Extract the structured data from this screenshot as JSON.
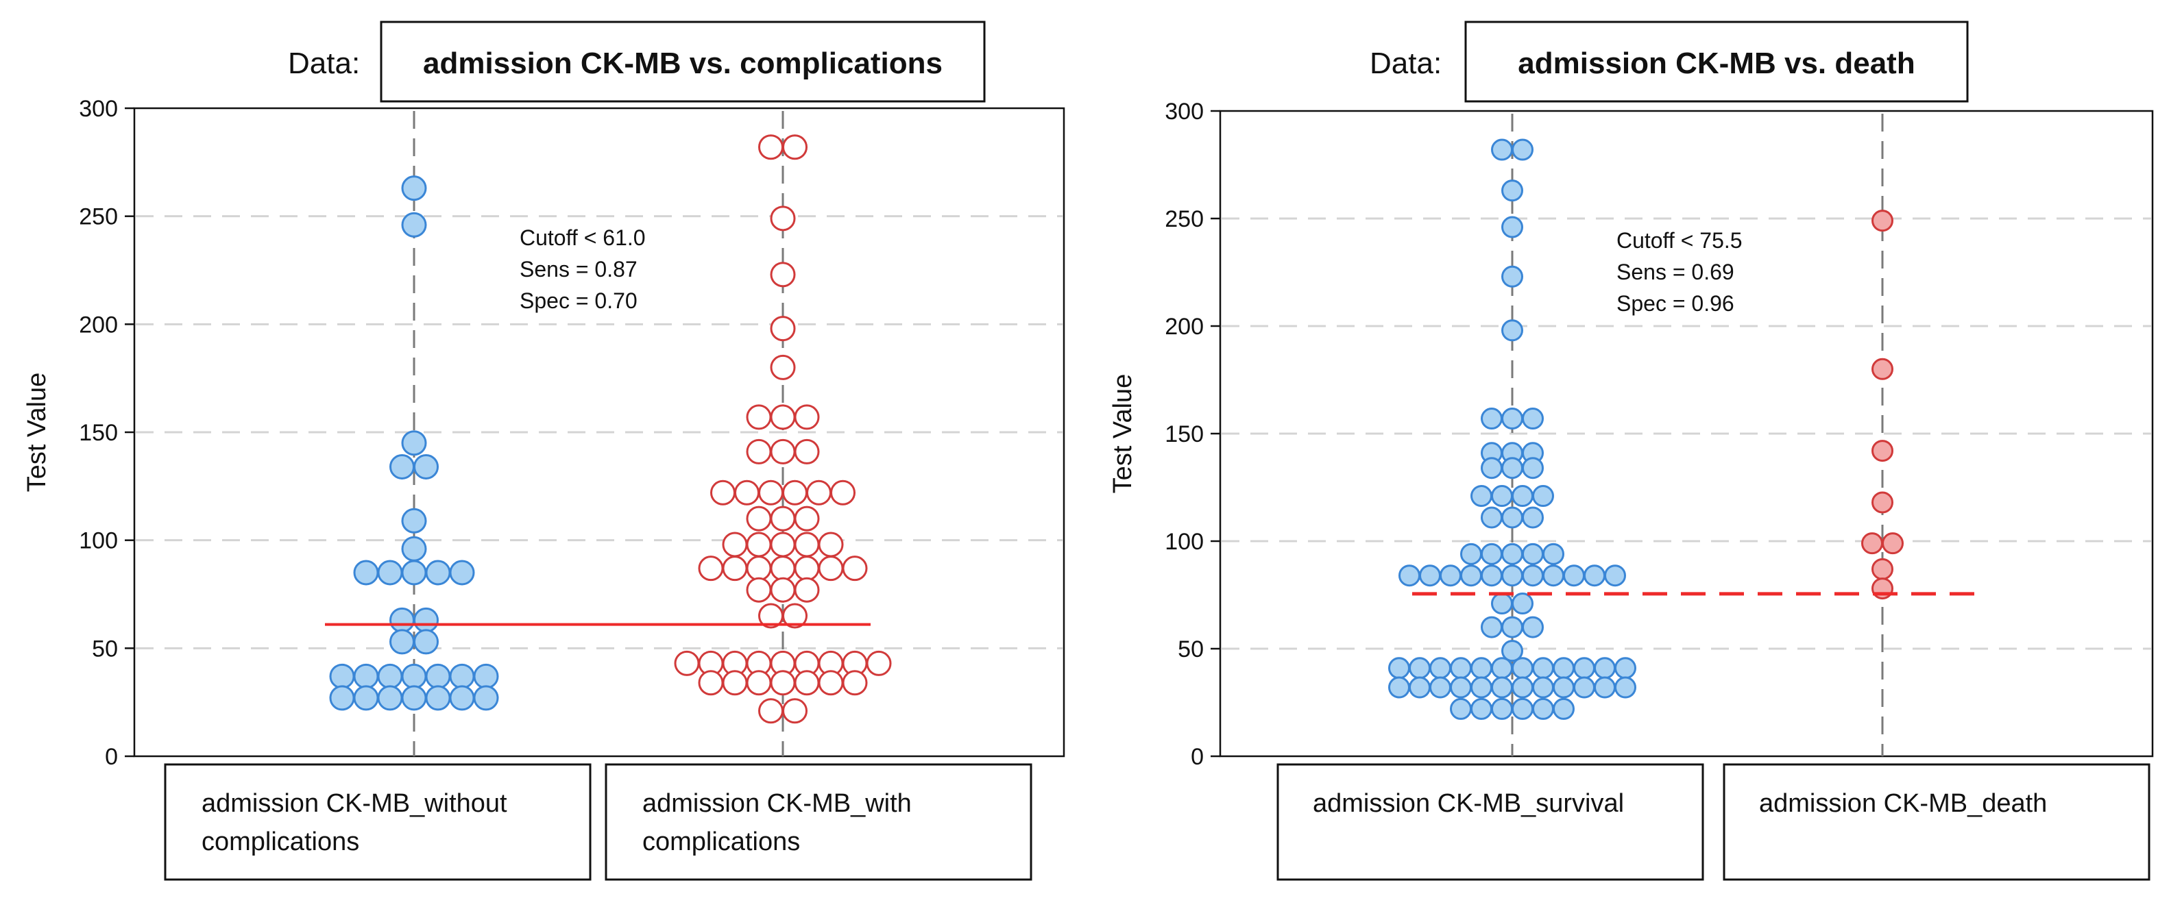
{
  "chart_data": [
    {
      "type": "scatter",
      "subtype": "dot-plot",
      "data_label": "Data:",
      "title": "admission CK-MB vs. complications",
      "ylabel": "Test Value",
      "ylim": [
        0,
        300
      ],
      "yticks": [
        "0",
        "50",
        "100",
        "150",
        "200",
        "250",
        "300"
      ],
      "grid": true,
      "cutoff_value": 61.0,
      "cutoff_style": "solid",
      "annotation": [
        "Cutoff < 61.0",
        "Sens = 0.87",
        "Spec = 0.70"
      ],
      "categories": [
        "admission CK-MB_without complications",
        "admission CK-MB_with complications"
      ],
      "category_lines": [
        [
          "admission CK-MB_without",
          "complications"
        ],
        [
          "admission CK-MB_with",
          "complications"
        ]
      ],
      "series": [
        {
          "name": "admission CK-MB_without complications",
          "color": "#3a86d6",
          "fill": "#a9d2f3",
          "hollow": false,
          "values": [
            263,
            246,
            145,
            134,
            134,
            109,
            96,
            85,
            85,
            85,
            85,
            85,
            63,
            63,
            53,
            53,
            37,
            37,
            37,
            37,
            37,
            37,
            37,
            27,
            27,
            27,
            27,
            27,
            27,
            27
          ]
        },
        {
          "name": "admission CK-MB_with complications",
          "color": "#d13a3a",
          "fill": "#ffffff",
          "hollow": true,
          "values": [
            282,
            282,
            249,
            223,
            198,
            180,
            157,
            157,
            157,
            141,
            141,
            141,
            122,
            122,
            122,
            122,
            122,
            122,
            110,
            110,
            110,
            98,
            98,
            98,
            98,
            98,
            87,
            87,
            87,
            87,
            87,
            87,
            87,
            77,
            77,
            77,
            65,
            65,
            43,
            43,
            43,
            43,
            43,
            43,
            43,
            43,
            43,
            34,
            34,
            34,
            34,
            34,
            34,
            34,
            21,
            21
          ]
        }
      ]
    },
    {
      "type": "scatter",
      "subtype": "dot-plot",
      "data_label": "Data:",
      "title": "admission CK-MB vs. death",
      "ylabel": "Test Value",
      "ylim": [
        0,
        300
      ],
      "yticks": [
        "0",
        "50",
        "100",
        "150",
        "200",
        "250",
        "300"
      ],
      "grid": true,
      "cutoff_value": 75.5,
      "cutoff_style": "dashed",
      "annotation": [
        "Cutoff < 75.5",
        "Sens = 0.69",
        "Spec = 0.96"
      ],
      "categories": [
        "admission CK-MB_survival",
        "admission CK-MB_death"
      ],
      "category_lines": [
        [
          "admission CK-MB_survival"
        ],
        [
          "admission CK-MB_death"
        ]
      ],
      "series": [
        {
          "name": "admission CK-MB_survival",
          "color": "#3a86d6",
          "fill": "#a9d2f3",
          "hollow": false,
          "values": [
            282,
            282,
            263,
            246,
            223,
            198,
            157,
            157,
            157,
            141,
            141,
            141,
            134,
            134,
            134,
            121,
            121,
            121,
            121,
            111,
            111,
            111,
            94,
            94,
            94,
            94,
            94,
            84,
            84,
            84,
            84,
            84,
            84,
            84,
            84,
            84,
            84,
            84,
            71,
            71,
            60,
            60,
            60,
            49,
            41,
            41,
            41,
            41,
            41,
            41,
            41,
            41,
            41,
            41,
            41,
            41,
            32,
            32,
            32,
            32,
            32,
            32,
            32,
            32,
            32,
            32,
            32,
            32,
            22,
            22,
            22,
            22,
            22,
            22
          ]
        },
        {
          "name": "admission CK-MB_death",
          "color": "#d13a3a",
          "fill": "#f3a9a9",
          "hollow": false,
          "values": [
            249,
            180,
            142,
            118,
            99,
            99,
            87,
            78
          ]
        }
      ]
    }
  ]
}
